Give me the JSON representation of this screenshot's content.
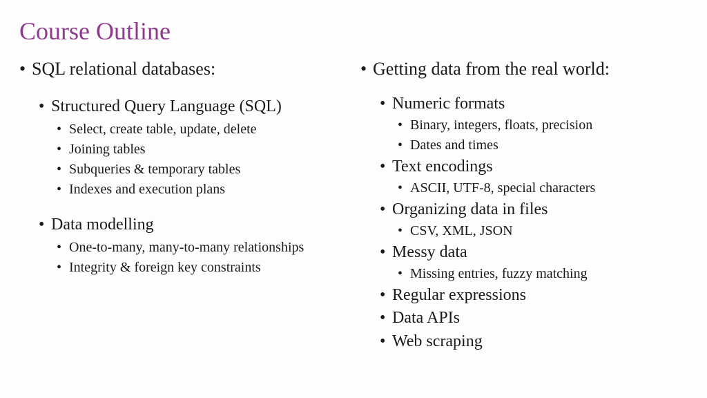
{
  "title": "Course Outline",
  "title_color": "#8e3a8e",
  "background_color": "#fdfdfd",
  "text_color": "#1a1a1a",
  "font_family": "Garamond, serif",
  "left": {
    "heading": "SQL relational databases:",
    "sections": [
      {
        "title": "Structured Query Language (SQL)",
        "items": [
          "Select, create table, update, delete",
          "Joining tables",
          "Subqueries & temporary tables",
          "Indexes and execution plans"
        ]
      },
      {
        "title": "Data modelling",
        "items": [
          "One-to-many, many-to-many relationships",
          "Integrity & foreign key constraints"
        ]
      }
    ]
  },
  "right": {
    "heading": "Getting data from the real world:",
    "sections": [
      {
        "title": "Numeric formats",
        "items": [
          "Binary, integers, floats, precision",
          "Dates and times"
        ]
      },
      {
        "title": "Text encodings",
        "items": [
          "ASCII, UTF-8, special characters"
        ]
      },
      {
        "title": "Organizing data in files",
        "items": [
          "CSV, XML, JSON"
        ]
      },
      {
        "title": "Messy data",
        "items": [
          "Missing entries, fuzzy matching"
        ]
      },
      {
        "title": "Regular expressions",
        "items": []
      },
      {
        "title": "Data APIs",
        "items": []
      },
      {
        "title": "Web scraping",
        "items": []
      }
    ]
  }
}
